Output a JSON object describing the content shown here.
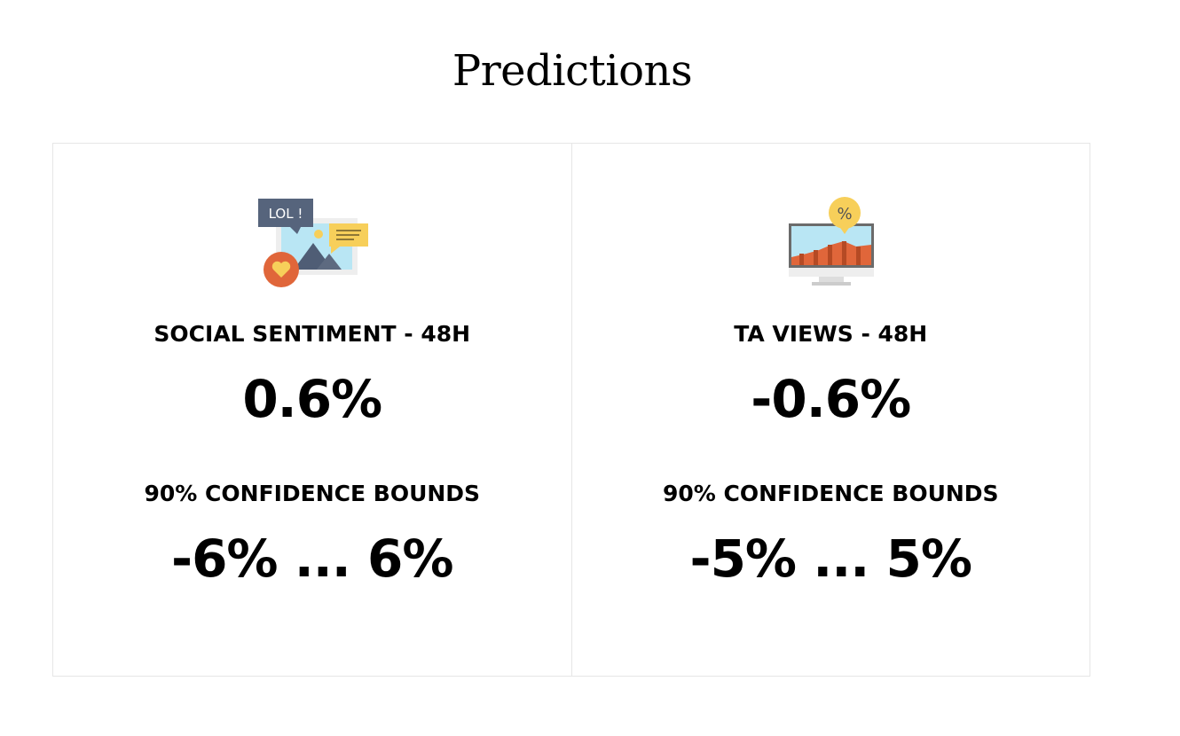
{
  "page": {
    "title": "Predictions"
  },
  "cards": [
    {
      "icon": "social-media-icon",
      "metric_label": "SOCIAL SENTIMENT - 48H",
      "metric_value": "0.6%",
      "bounds_label": "90% CONFIDENCE BOUNDS",
      "bounds_value": "-6% ... 6%",
      "icon_text": "LOL !"
    },
    {
      "icon": "monitor-chart-icon",
      "metric_label": "TA VIEWS - 48H",
      "metric_value": "-0.6%",
      "bounds_label": "90% CONFIDENCE BOUNDS",
      "bounds_value": "-5% ... 5%",
      "icon_text": "%"
    }
  ],
  "colors": {
    "border": "#e6e6e6",
    "text": "#000000",
    "icon_orange": "#e0663a",
    "icon_yellow": "#f7cf5a",
    "icon_blue": "#b9e6f4",
    "icon_slate": "#4f5d75"
  }
}
